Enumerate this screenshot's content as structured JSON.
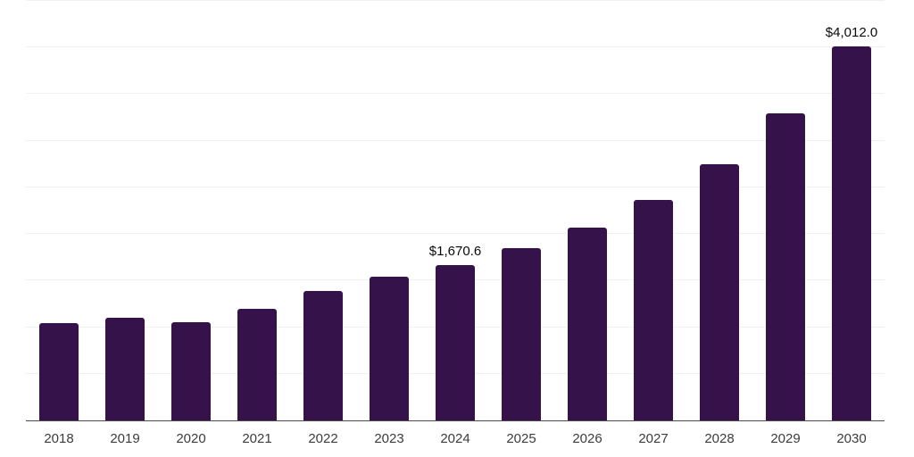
{
  "chart_data": {
    "type": "bar",
    "title": "",
    "xlabel": "",
    "ylabel": "",
    "categories": [
      "2018",
      "2019",
      "2020",
      "2021",
      "2022",
      "2023",
      "2024",
      "2025",
      "2026",
      "2027",
      "2028",
      "2029",
      "2030"
    ],
    "values": [
      1040,
      1105,
      1050,
      1200,
      1385,
      1540,
      1670.6,
      1845,
      2070,
      2365,
      2750,
      3290,
      4012.0
    ],
    "value_labels": {
      "2024": "$1,670.6",
      "2030": "$4,012.0"
    },
    "ylim": [
      0,
      4500
    ],
    "gridline_interval": 500,
    "grid": "horizontal-only",
    "legend_position": "none",
    "bar_color": "#35124A",
    "gridline_color": "#f0f0f0",
    "axis_line_color": "#4a4a4a",
    "tick_label_color": "#3c3c3c",
    "value_label_color": "#0a0a0a"
  }
}
